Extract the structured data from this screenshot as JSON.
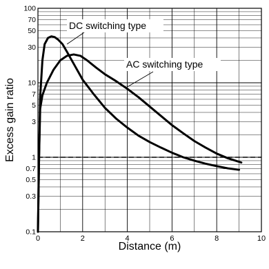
{
  "chart_data": {
    "type": "line",
    "title": "",
    "xlabel": "Distance (m)",
    "ylabel": "Excess gain ratio",
    "xlim": [
      0,
      10
    ],
    "ylim": [
      0.1,
      100
    ],
    "yscale": "log",
    "grid": true,
    "x_ticks": [
      0,
      2,
      4,
      6,
      8,
      10
    ],
    "y_ticks": [
      0.1,
      0.3,
      0.5,
      0.7,
      1,
      3,
      5,
      7,
      10,
      30,
      50,
      70,
      100
    ],
    "y_tick_labels": [
      "0.1",
      "0.3",
      "0.5",
      "0.7",
      "1",
      "3",
      "5",
      "7",
      "10",
      "30",
      "50",
      "70",
      "100"
    ],
    "reference_line": {
      "y": 1,
      "style": "dashed"
    },
    "annotations": [
      {
        "text": "DC switching type",
        "points_to": [
          1.3,
          33
        ]
      },
      {
        "text": "AC switching type",
        "points_to": [
          4.0,
          8.8
        ]
      }
    ],
    "series": [
      {
        "name": "DC switching type",
        "x": [
          0.0,
          0.05,
          0.1,
          0.2,
          0.3,
          0.45,
          0.6,
          0.75,
          0.9,
          1.1,
          1.3,
          1.6,
          2.0,
          2.5,
          3.0,
          3.5,
          4.0,
          4.5,
          5.0,
          5.5,
          6.0,
          6.5,
          7.0,
          7.5,
          8.0,
          8.5,
          9.0
        ],
        "y": [
          0.1,
          1.0,
          6.5,
          20,
          33,
          40,
          42,
          41,
          38,
          33,
          26,
          18,
          11,
          7.0,
          4.6,
          3.3,
          2.5,
          1.95,
          1.6,
          1.35,
          1.15,
          1.0,
          0.9,
          0.82,
          0.76,
          0.71,
          0.68
        ]
      },
      {
        "name": "AC switching type",
        "x": [
          0.0,
          0.05,
          0.1,
          0.2,
          0.4,
          0.7,
          1.0,
          1.3,
          1.6,
          1.9,
          2.2,
          2.6,
          3.0,
          3.5,
          4.0,
          4.5,
          5.0,
          5.5,
          6.0,
          6.5,
          7.0,
          7.5,
          8.0,
          8.5,
          9.0,
          9.1
        ],
        "y": [
          0.1,
          1.0,
          4.5,
          6.8,
          10,
          15,
          20,
          23,
          24,
          23,
          20,
          16,
          13,
          10.5,
          8.3,
          6.4,
          4.8,
          3.6,
          2.7,
          2.1,
          1.65,
          1.35,
          1.12,
          0.97,
          0.87,
          0.85
        ]
      }
    ]
  }
}
